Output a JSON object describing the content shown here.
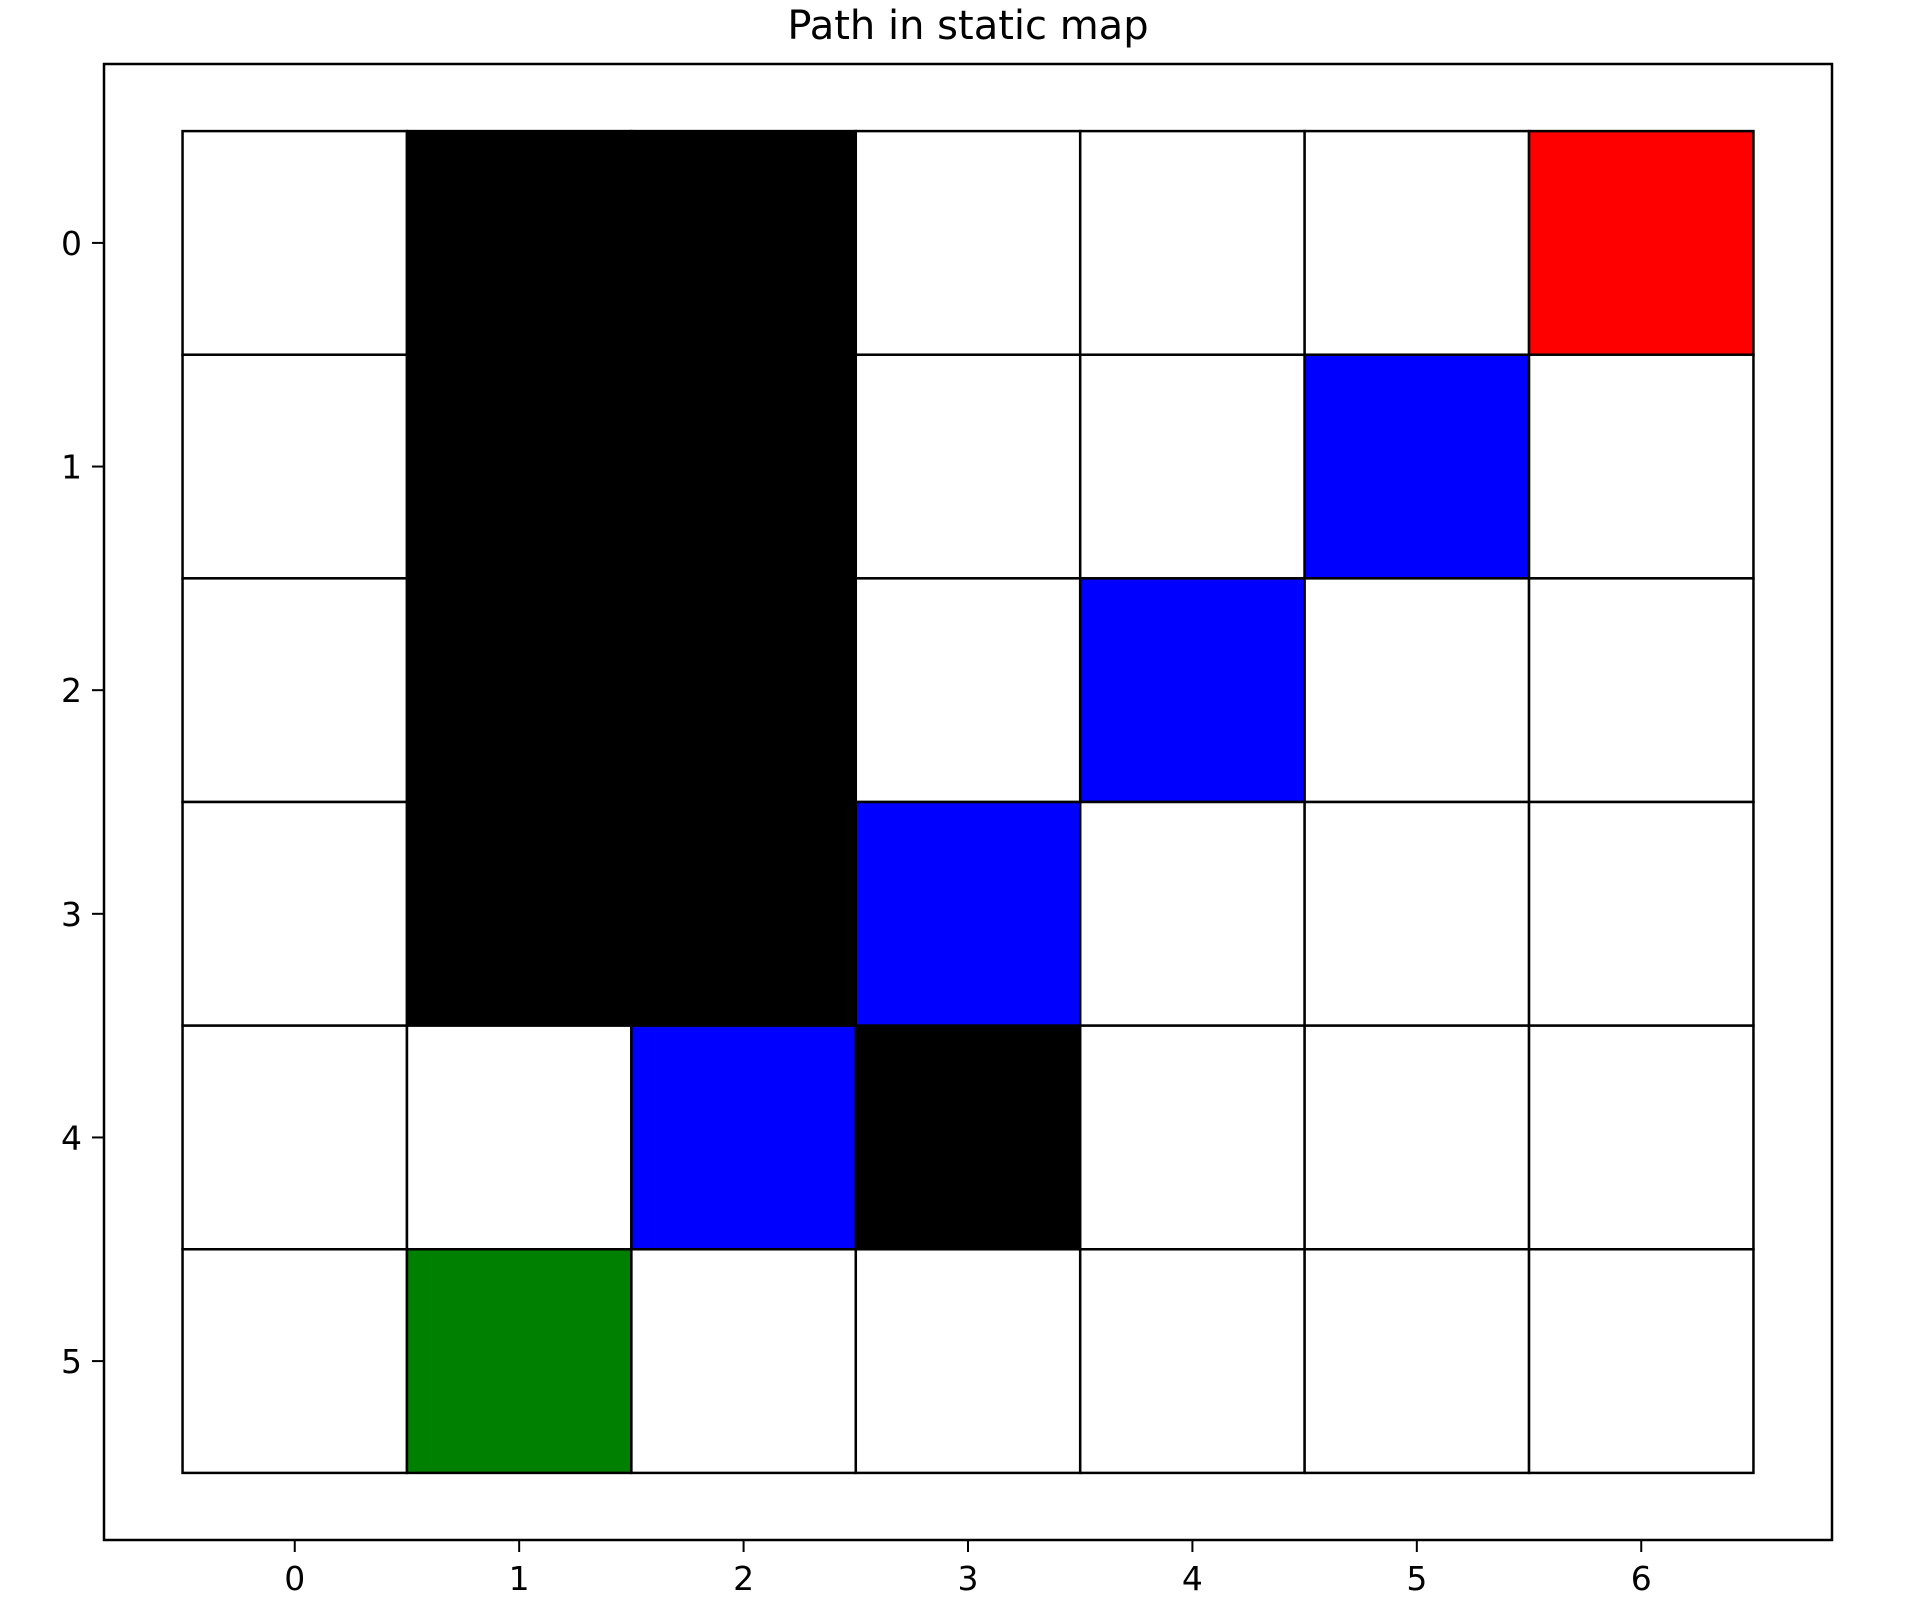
{
  "chart_data": {
    "type": "heatmap",
    "title": "Path in static map",
    "xlabel": "",
    "ylabel": "",
    "rows": 6,
    "cols": 7,
    "x_ticks": [
      "0",
      "1",
      "2",
      "3",
      "4",
      "5",
      "6"
    ],
    "y_ticks": [
      "0",
      "1",
      "2",
      "3",
      "4",
      "5"
    ],
    "xlim": [
      -0.85,
      6.85
    ],
    "ylim": [
      5.8,
      -0.8
    ],
    "grid": "cell borders",
    "legend": "none",
    "cell_types": {
      "free": "#ffffff",
      "obstacle": "#000000",
      "path": "#0000ff",
      "start": "#008000",
      "goal": "#ff0000"
    },
    "grid_values": [
      [
        "free",
        "obstacle",
        "obstacle",
        "free",
        "free",
        "free",
        "goal"
      ],
      [
        "free",
        "obstacle",
        "obstacle",
        "free",
        "free",
        "path",
        "free"
      ],
      [
        "free",
        "obstacle",
        "obstacle",
        "free",
        "path",
        "free",
        "free"
      ],
      [
        "free",
        "obstacle",
        "obstacle",
        "path",
        "free",
        "free",
        "free"
      ],
      [
        "free",
        "free",
        "path",
        "obstacle",
        "free",
        "free",
        "free"
      ],
      [
        "free",
        "start",
        "free",
        "free",
        "free",
        "free",
        "free"
      ]
    ]
  }
}
